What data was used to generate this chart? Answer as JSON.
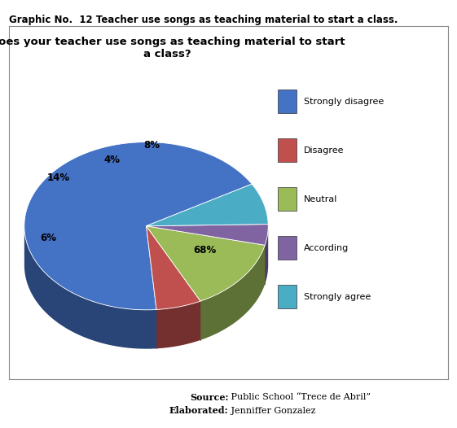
{
  "title": "Does your teacher use songs as teaching material to start\na class?",
  "labels": [
    "Strongly disagree",
    "Disagree",
    "Neutral",
    "According",
    "Strongly agree"
  ],
  "values": [
    68,
    6,
    14,
    4,
    8
  ],
  "colors": [
    "#4472C4",
    "#C0504D",
    "#9BBB59",
    "#8064A2",
    "#4BACC6"
  ],
  "pct_labels": [
    "68%",
    "6%",
    "14%",
    "4%",
    "8%"
  ],
  "source_bold": "Source:",
  "source_rest": " Public School “Trece de Abril”",
  "elaborated_bold": "Elaborated:",
  "elaborated_rest": " Jenniffer Gonzalez",
  "graphic_label": "Graphic No.  12 Teacher use songs as teaching material to start a class.",
  "background_color": "#FFFFFF"
}
